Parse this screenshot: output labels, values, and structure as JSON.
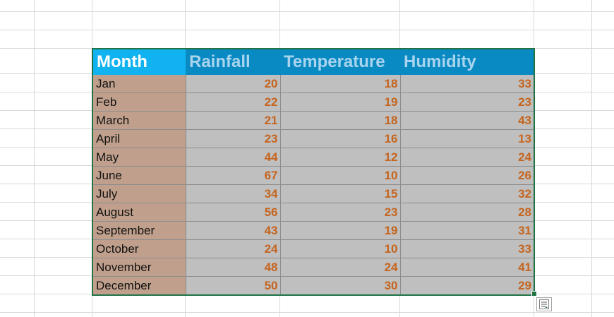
{
  "table": {
    "headers": [
      "Month",
      "Rainfall",
      "Temperature",
      "Humidity"
    ],
    "rows": [
      {
        "month": "Jan",
        "rainfall": "20",
        "temperature": "18",
        "humidity": "33"
      },
      {
        "month": "Feb",
        "rainfall": "22",
        "temperature": "19",
        "humidity": "23"
      },
      {
        "month": "March",
        "rainfall": "21",
        "temperature": "18",
        "humidity": "43"
      },
      {
        "month": "April",
        "rainfall": "23",
        "temperature": "16",
        "humidity": "13"
      },
      {
        "month": "May",
        "rainfall": "44",
        "temperature": "12",
        "humidity": "24"
      },
      {
        "month": "June",
        "rainfall": "67",
        "temperature": "10",
        "humidity": "26"
      },
      {
        "month": "July",
        "rainfall": "34",
        "temperature": "15",
        "humidity": "32"
      },
      {
        "month": "August",
        "rainfall": "56",
        "temperature": "23",
        "humidity": "28"
      },
      {
        "month": "September",
        "rainfall": "43",
        "temperature": "19",
        "humidity": "31"
      },
      {
        "month": "October",
        "rainfall": "24",
        "temperature": "10",
        "humidity": "33"
      },
      {
        "month": "November",
        "rainfall": "48",
        "temperature": "24",
        "humidity": "41"
      },
      {
        "month": "December",
        "rainfall": "50",
        "temperature": "30",
        "humidity": "29"
      }
    ]
  },
  "colors": {
    "header_first": "#10b3ef",
    "header": "#0a8ac2",
    "month_fill": "#c0a08c",
    "value_fill": "#bfbfbf",
    "value_text": "#c5651f",
    "selection_border": "#217346"
  },
  "icons": {
    "quick_analysis": "quick-analysis-icon"
  }
}
